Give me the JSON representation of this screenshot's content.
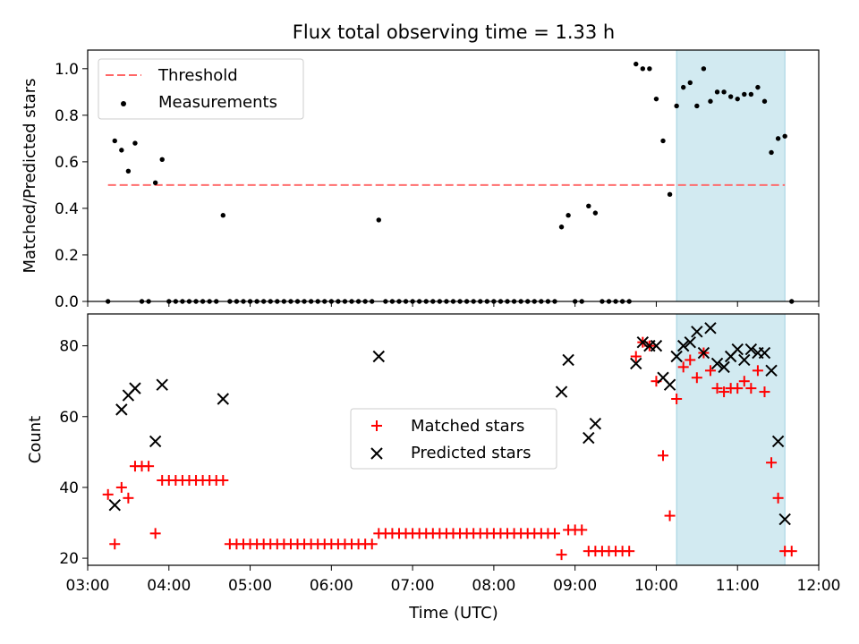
{
  "chart_data": [
    {
      "type": "scatter",
      "title": "Flux total observing time = 1.33 h",
      "ylabel": "Matched/Predicted stars",
      "xlabel": "",
      "xlim": [
        "03:00",
        "12:00"
      ],
      "ylim": [
        0,
        1.08
      ],
      "yticks": [
        "0.0",
        "0.2",
        "0.4",
        "0.6",
        "0.8",
        "1.0"
      ],
      "grid": false,
      "legend_position": "upper left",
      "highlight_span": {
        "x": [
          "10:15",
          "11:35"
        ],
        "color": "#add8e6"
      },
      "threshold": {
        "name": "Threshold",
        "value": 0.5,
        "x": [
          "03:15",
          "11:35"
        ],
        "color": "#ff6666",
        "style": "dashed"
      },
      "series": [
        {
          "name": "Measurements",
          "color": "#000000",
          "marker": "dot",
          "points": [
            [
              "03:15",
              0.0
            ],
            [
              "03:20",
              0.69
            ],
            [
              "03:25",
              0.65
            ],
            [
              "03:30",
              0.56
            ],
            [
              "03:35",
              0.68
            ],
            [
              "03:40",
              0.0
            ],
            [
              "03:45",
              0.0
            ],
            [
              "03:50",
              0.51
            ],
            [
              "03:55",
              0.61
            ],
            [
              "04:00",
              0.0
            ],
            [
              "04:05",
              0.0
            ],
            [
              "04:10",
              0.0
            ],
            [
              "04:15",
              0.0
            ],
            [
              "04:20",
              0.0
            ],
            [
              "04:25",
              0.0
            ],
            [
              "04:30",
              0.0
            ],
            [
              "04:35",
              0.0
            ],
            [
              "04:40",
              0.37
            ],
            [
              "04:45",
              0.0
            ],
            [
              "04:50",
              0.0
            ],
            [
              "04:55",
              0.0
            ],
            [
              "05:00",
              0.0
            ],
            [
              "05:05",
              0.0
            ],
            [
              "05:10",
              0.0
            ],
            [
              "05:15",
              0.0
            ],
            [
              "05:20",
              0.0
            ],
            [
              "05:25",
              0.0
            ],
            [
              "05:30",
              0.0
            ],
            [
              "05:35",
              0.0
            ],
            [
              "05:40",
              0.0
            ],
            [
              "05:45",
              0.0
            ],
            [
              "05:50",
              0.0
            ],
            [
              "05:55",
              0.0
            ],
            [
              "06:00",
              0.0
            ],
            [
              "06:05",
              0.0
            ],
            [
              "06:10",
              0.0
            ],
            [
              "06:15",
              0.0
            ],
            [
              "06:20",
              0.0
            ],
            [
              "06:25",
              0.0
            ],
            [
              "06:30",
              0.0
            ],
            [
              "06:35",
              0.35
            ],
            [
              "06:40",
              0.0
            ],
            [
              "06:45",
              0.0
            ],
            [
              "06:50",
              0.0
            ],
            [
              "06:55",
              0.0
            ],
            [
              "07:00",
              0.0
            ],
            [
              "07:05",
              0.0
            ],
            [
              "07:10",
              0.0
            ],
            [
              "07:15",
              0.0
            ],
            [
              "07:20",
              0.0
            ],
            [
              "07:25",
              0.0
            ],
            [
              "07:30",
              0.0
            ],
            [
              "07:35",
              0.0
            ],
            [
              "07:40",
              0.0
            ],
            [
              "07:45",
              0.0
            ],
            [
              "07:50",
              0.0
            ],
            [
              "07:55",
              0.0
            ],
            [
              "08:00",
              0.0
            ],
            [
              "08:05",
              0.0
            ],
            [
              "08:10",
              0.0
            ],
            [
              "08:15",
              0.0
            ],
            [
              "08:20",
              0.0
            ],
            [
              "08:25",
              0.0
            ],
            [
              "08:30",
              0.0
            ],
            [
              "08:35",
              0.0
            ],
            [
              "08:40",
              0.0
            ],
            [
              "08:45",
              0.0
            ],
            [
              "08:50",
              0.32
            ],
            [
              "08:55",
              0.37
            ],
            [
              "09:00",
              0.0
            ],
            [
              "09:05",
              0.0
            ],
            [
              "09:10",
              0.41
            ],
            [
              "09:15",
              0.38
            ],
            [
              "09:20",
              0.0
            ],
            [
              "09:25",
              0.0
            ],
            [
              "09:30",
              0.0
            ],
            [
              "09:35",
              0.0
            ],
            [
              "09:40",
              0.0
            ],
            [
              "09:45",
              1.02
            ],
            [
              "09:50",
              1.0
            ],
            [
              "09:55",
              1.0
            ],
            [
              "10:00",
              0.87
            ],
            [
              "10:05",
              0.69
            ],
            [
              "10:10",
              0.46
            ],
            [
              "10:15",
              0.84
            ],
            [
              "10:20",
              0.92
            ],
            [
              "10:25",
              0.94
            ],
            [
              "10:30",
              0.84
            ],
            [
              "10:35",
              1.0
            ],
            [
              "10:40",
              0.86
            ],
            [
              "10:45",
              0.9
            ],
            [
              "10:50",
              0.9
            ],
            [
              "10:55",
              0.88
            ],
            [
              "11:00",
              0.87
            ],
            [
              "11:05",
              0.89
            ],
            [
              "11:10",
              0.89
            ],
            [
              "11:15",
              0.92
            ],
            [
              "11:20",
              0.86
            ],
            [
              "11:25",
              0.64
            ],
            [
              "11:30",
              0.7
            ],
            [
              "11:35",
              0.71
            ],
            [
              "11:40",
              0.0
            ]
          ]
        }
      ]
    },
    {
      "type": "scatter",
      "title": "",
      "ylabel": "Count",
      "xlabel": "Time (UTC)",
      "xlim": [
        "03:00",
        "12:00"
      ],
      "xticks": [
        "03:00",
        "04:00",
        "05:00",
        "06:00",
        "07:00",
        "08:00",
        "09:00",
        "10:00",
        "11:00",
        "12:00"
      ],
      "ylim": [
        18,
        89
      ],
      "yticks": [
        "20",
        "40",
        "60",
        "80"
      ],
      "grid": false,
      "legend_position": "center",
      "highlight_span": {
        "x": [
          "10:15",
          "11:35"
        ],
        "color": "#add8e6"
      },
      "series": [
        {
          "name": "Matched stars",
          "color": "#ff0000",
          "marker": "plus",
          "points": [
            [
              "03:15",
              38
            ],
            [
              "03:20",
              24
            ],
            [
              "03:25",
              40
            ],
            [
              "03:30",
              37
            ],
            [
              "03:35",
              46
            ],
            [
              "03:40",
              46
            ],
            [
              "03:45",
              46
            ],
            [
              "03:50",
              27
            ],
            [
              "03:55",
              42
            ],
            [
              "04:00",
              42
            ],
            [
              "04:05",
              42
            ],
            [
              "04:10",
              42
            ],
            [
              "04:15",
              42
            ],
            [
              "04:20",
              42
            ],
            [
              "04:25",
              42
            ],
            [
              "04:30",
              42
            ],
            [
              "04:35",
              42
            ],
            [
              "04:40",
              42
            ],
            [
              "04:45",
              24
            ],
            [
              "04:50",
              24
            ],
            [
              "04:55",
              24
            ],
            [
              "05:00",
              24
            ],
            [
              "05:05",
              24
            ],
            [
              "05:10",
              24
            ],
            [
              "05:15",
              24
            ],
            [
              "05:20",
              24
            ],
            [
              "05:25",
              24
            ],
            [
              "05:30",
              24
            ],
            [
              "05:35",
              24
            ],
            [
              "05:40",
              24
            ],
            [
              "05:45",
              24
            ],
            [
              "05:50",
              24
            ],
            [
              "05:55",
              24
            ],
            [
              "06:00",
              24
            ],
            [
              "06:05",
              24
            ],
            [
              "06:10",
              24
            ],
            [
              "06:15",
              24
            ],
            [
              "06:20",
              24
            ],
            [
              "06:25",
              24
            ],
            [
              "06:30",
              24
            ],
            [
              "06:35",
              27
            ],
            [
              "06:40",
              27
            ],
            [
              "06:45",
              27
            ],
            [
              "06:50",
              27
            ],
            [
              "06:55",
              27
            ],
            [
              "07:00",
              27
            ],
            [
              "07:05",
              27
            ],
            [
              "07:10",
              27
            ],
            [
              "07:15",
              27
            ],
            [
              "07:20",
              27
            ],
            [
              "07:25",
              27
            ],
            [
              "07:30",
              27
            ],
            [
              "07:35",
              27
            ],
            [
              "07:40",
              27
            ],
            [
              "07:45",
              27
            ],
            [
              "07:50",
              27
            ],
            [
              "07:55",
              27
            ],
            [
              "08:00",
              27
            ],
            [
              "08:05",
              27
            ],
            [
              "08:10",
              27
            ],
            [
              "08:15",
              27
            ],
            [
              "08:20",
              27
            ],
            [
              "08:25",
              27
            ],
            [
              "08:30",
              27
            ],
            [
              "08:35",
              27
            ],
            [
              "08:40",
              27
            ],
            [
              "08:45",
              27
            ],
            [
              "08:50",
              21
            ],
            [
              "08:55",
              28
            ],
            [
              "09:00",
              28
            ],
            [
              "09:05",
              28
            ],
            [
              "09:10",
              22
            ],
            [
              "09:15",
              22
            ],
            [
              "09:20",
              22
            ],
            [
              "09:25",
              22
            ],
            [
              "09:30",
              22
            ],
            [
              "09:35",
              22
            ],
            [
              "09:40",
              22
            ],
            [
              "09:45",
              77
            ],
            [
              "09:50",
              81
            ],
            [
              "09:55",
              80
            ],
            [
              "10:00",
              70
            ],
            [
              "10:05",
              49
            ],
            [
              "10:10",
              32
            ],
            [
              "10:15",
              65
            ],
            [
              "10:20",
              74
            ],
            [
              "10:25",
              76
            ],
            [
              "10:30",
              71
            ],
            [
              "10:35",
              78
            ],
            [
              "10:40",
              73
            ],
            [
              "10:45",
              68
            ],
            [
              "10:50",
              67
            ],
            [
              "10:55",
              68
            ],
            [
              "11:00",
              68
            ],
            [
              "11:05",
              70
            ],
            [
              "11:10",
              68
            ],
            [
              "11:15",
              73
            ],
            [
              "11:20",
              67
            ],
            [
              "11:25",
              47
            ],
            [
              "11:30",
              37
            ],
            [
              "11:35",
              22
            ],
            [
              "11:40",
              22
            ]
          ]
        },
        {
          "name": "Predicted stars",
          "color": "#000000",
          "marker": "x",
          "points": [
            [
              "03:20",
              35
            ],
            [
              "03:25",
              62
            ],
            [
              "03:30",
              66
            ],
            [
              "03:35",
              68
            ],
            [
              "03:50",
              53
            ],
            [
              "03:55",
              69
            ],
            [
              "04:40",
              65
            ],
            [
              "06:35",
              77
            ],
            [
              "08:50",
              67
            ],
            [
              "08:55",
              76
            ],
            [
              "09:10",
              54
            ],
            [
              "09:15",
              58
            ],
            [
              "09:45",
              75
            ],
            [
              "09:50",
              81
            ],
            [
              "09:55",
              80
            ],
            [
              "10:00",
              80
            ],
            [
              "10:05",
              71
            ],
            [
              "10:10",
              69
            ],
            [
              "10:15",
              77
            ],
            [
              "10:20",
              80
            ],
            [
              "10:25",
              81
            ],
            [
              "10:30",
              84
            ],
            [
              "10:35",
              78
            ],
            [
              "10:40",
              85
            ],
            [
              "10:45",
              75
            ],
            [
              "10:50",
              74
            ],
            [
              "10:55",
              77
            ],
            [
              "11:00",
              79
            ],
            [
              "11:05",
              76
            ],
            [
              "11:10",
              79
            ],
            [
              "11:15",
              78
            ],
            [
              "11:20",
              78
            ],
            [
              "11:25",
              73
            ],
            [
              "11:30",
              53
            ],
            [
              "11:35",
              31
            ]
          ]
        }
      ]
    }
  ]
}
